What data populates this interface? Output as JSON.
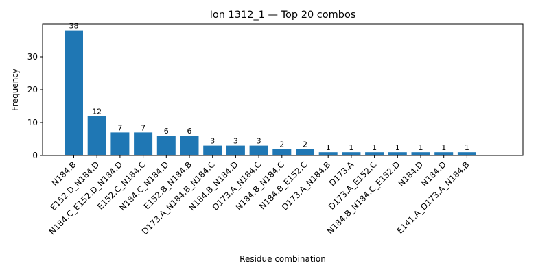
{
  "chart_data": {
    "type": "bar",
    "title": "Ion 1312_1 — Top 20 combos",
    "xlabel": "Residue combination",
    "ylabel": "Frequency",
    "ylim": [
      0,
      40
    ],
    "yticks": [
      0,
      10,
      20,
      30
    ],
    "grid": false,
    "bar_color": "#1f77b4",
    "categories": [
      "N184.B",
      "E152.D_N184.D",
      "N184.C_E152.D_N184.D",
      "E152.C_N184.C",
      "N184.C_N184.D",
      "E152.B_N184.B",
      "D173.A_N184.B_N184.C",
      "N184.B_N184.D",
      "D173.A_N184.C",
      "N184.B_N184.C",
      "N184.B_E152.C",
      "D173.A_N184.B",
      "D173.A",
      "D173.A_E152.C",
      "N184.B_N184.C_E152.D",
      "N184.D",
      "N184.D",
      "E141.A_D173.A_N184.B"
    ],
    "values": [
      38,
      12,
      7,
      7,
      6,
      6,
      3,
      3,
      3,
      2,
      2,
      1,
      1,
      1,
      1,
      1,
      1,
      1
    ]
  }
}
